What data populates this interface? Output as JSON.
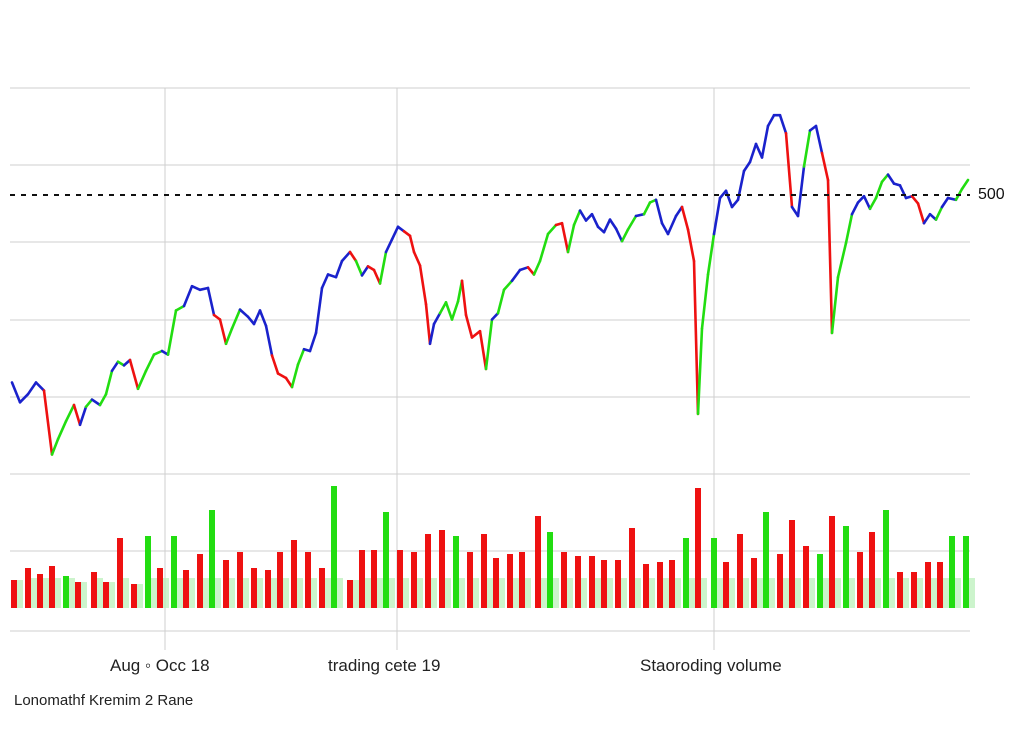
{
  "chart_data": {
    "type": "line",
    "reference_line": {
      "value": 500,
      "label": "500",
      "style": "dashed"
    },
    "x_labels": [
      "Aug ◦ Occ 18",
      "trading cete 19",
      "Staoroding volume"
    ],
    "footer": "Lonomathf Kremim 2 Rane",
    "grid": true,
    "ylim": [
      0,
      600
    ],
    "colors": {
      "up": "#22dd11",
      "down": "#ee1111",
      "flat": "#1a22cc",
      "volume_shadow": "#b6f0b6",
      "grid": "#cfcfcf"
    },
    "price": [
      {
        "x": 12,
        "y": 275,
        "c": "blue"
      },
      {
        "x": 20,
        "y": 253,
        "c": "blue"
      },
      {
        "x": 28,
        "y": 262,
        "c": "blue"
      },
      {
        "x": 36,
        "y": 275,
        "c": "blue"
      },
      {
        "x": 44,
        "y": 266,
        "c": "blue"
      },
      {
        "x": 52,
        "y": 195,
        "c": "red"
      },
      {
        "x": 58,
        "y": 212,
        "c": "green"
      },
      {
        "x": 66,
        "y": 232,
        "c": "green"
      },
      {
        "x": 74,
        "y": 250,
        "c": "green"
      },
      {
        "x": 80,
        "y": 228,
        "c": "red"
      },
      {
        "x": 86,
        "y": 248,
        "c": "blue"
      },
      {
        "x": 92,
        "y": 256,
        "c": "green"
      },
      {
        "x": 100,
        "y": 250,
        "c": "blue"
      },
      {
        "x": 106,
        "y": 262,
        "c": "green"
      },
      {
        "x": 112,
        "y": 288,
        "c": "green"
      },
      {
        "x": 118,
        "y": 298,
        "c": "blue"
      },
      {
        "x": 124,
        "y": 294,
        "c": "green"
      },
      {
        "x": 130,
        "y": 300,
        "c": "blue"
      },
      {
        "x": 138,
        "y": 268,
        "c": "red"
      },
      {
        "x": 146,
        "y": 288,
        "c": "green"
      },
      {
        "x": 154,
        "y": 306,
        "c": "green"
      },
      {
        "x": 162,
        "y": 310,
        "c": "green"
      },
      {
        "x": 168,
        "y": 306,
        "c": "blue"
      },
      {
        "x": 176,
        "y": 355,
        "c": "green"
      },
      {
        "x": 184,
        "y": 360,
        "c": "green"
      },
      {
        "x": 192,
        "y": 382,
        "c": "blue"
      },
      {
        "x": 200,
        "y": 378,
        "c": "blue"
      },
      {
        "x": 208,
        "y": 380,
        "c": "blue"
      },
      {
        "x": 214,
        "y": 350,
        "c": "blue"
      },
      {
        "x": 220,
        "y": 345,
        "c": "red"
      },
      {
        "x": 226,
        "y": 318,
        "c": "red"
      },
      {
        "x": 232,
        "y": 335,
        "c": "green"
      },
      {
        "x": 240,
        "y": 356,
        "c": "green"
      },
      {
        "x": 248,
        "y": 348,
        "c": "blue"
      },
      {
        "x": 254,
        "y": 340,
        "c": "blue"
      },
      {
        "x": 260,
        "y": 355,
        "c": "blue"
      },
      {
        "x": 266,
        "y": 338,
        "c": "blue"
      },
      {
        "x": 272,
        "y": 305,
        "c": "blue"
      },
      {
        "x": 278,
        "y": 285,
        "c": "red"
      },
      {
        "x": 286,
        "y": 280,
        "c": "red"
      },
      {
        "x": 292,
        "y": 270,
        "c": "red"
      },
      {
        "x": 298,
        "y": 295,
        "c": "green"
      },
      {
        "x": 304,
        "y": 312,
        "c": "green"
      },
      {
        "x": 310,
        "y": 310,
        "c": "blue"
      },
      {
        "x": 316,
        "y": 330,
        "c": "blue"
      },
      {
        "x": 322,
        "y": 380,
        "c": "blue"
      },
      {
        "x": 328,
        "y": 395,
        "c": "blue"
      },
      {
        "x": 336,
        "y": 392,
        "c": "blue"
      },
      {
        "x": 342,
        "y": 410,
        "c": "blue"
      },
      {
        "x": 350,
        "y": 420,
        "c": "blue"
      },
      {
        "x": 356,
        "y": 410,
        "c": "red"
      },
      {
        "x": 362,
        "y": 394,
        "c": "green"
      },
      {
        "x": 368,
        "y": 404,
        "c": "blue"
      },
      {
        "x": 374,
        "y": 400,
        "c": "red"
      },
      {
        "x": 380,
        "y": 385,
        "c": "red"
      },
      {
        "x": 386,
        "y": 420,
        "c": "green"
      },
      {
        "x": 392,
        "y": 434,
        "c": "blue"
      },
      {
        "x": 398,
        "y": 448,
        "c": "blue"
      },
      {
        "x": 404,
        "y": 443,
        "c": "blue"
      },
      {
        "x": 410,
        "y": 438,
        "c": "red"
      },
      {
        "x": 414,
        "y": 420,
        "c": "red"
      },
      {
        "x": 420,
        "y": 405,
        "c": "red"
      },
      {
        "x": 426,
        "y": 362,
        "c": "red"
      },
      {
        "x": 430,
        "y": 318,
        "c": "red"
      },
      {
        "x": 434,
        "y": 340,
        "c": "blue"
      },
      {
        "x": 440,
        "y": 352,
        "c": "blue"
      },
      {
        "x": 446,
        "y": 364,
        "c": "green"
      },
      {
        "x": 452,
        "y": 345,
        "c": "green"
      },
      {
        "x": 458,
        "y": 365,
        "c": "green"
      },
      {
        "x": 462,
        "y": 388,
        "c": "green"
      },
      {
        "x": 466,
        "y": 350,
        "c": "red"
      },
      {
        "x": 472,
        "y": 325,
        "c": "red"
      },
      {
        "x": 480,
        "y": 332,
        "c": "red"
      },
      {
        "x": 486,
        "y": 290,
        "c": "red"
      },
      {
        "x": 492,
        "y": 345,
        "c": "green"
      },
      {
        "x": 498,
        "y": 352,
        "c": "blue"
      },
      {
        "x": 504,
        "y": 378,
        "c": "green"
      },
      {
        "x": 512,
        "y": 388,
        "c": "green"
      },
      {
        "x": 520,
        "y": 400,
        "c": "blue"
      },
      {
        "x": 528,
        "y": 403,
        "c": "blue"
      },
      {
        "x": 534,
        "y": 395,
        "c": "red"
      },
      {
        "x": 540,
        "y": 410,
        "c": "green"
      },
      {
        "x": 548,
        "y": 440,
        "c": "green"
      },
      {
        "x": 556,
        "y": 450,
        "c": "green"
      },
      {
        "x": 562,
        "y": 452,
        "c": "red"
      },
      {
        "x": 568,
        "y": 420,
        "c": "red"
      },
      {
        "x": 574,
        "y": 450,
        "c": "green"
      },
      {
        "x": 580,
        "y": 466,
        "c": "green"
      },
      {
        "x": 586,
        "y": 455,
        "c": "blue"
      },
      {
        "x": 592,
        "y": 462,
        "c": "blue"
      },
      {
        "x": 598,
        "y": 448,
        "c": "blue"
      },
      {
        "x": 604,
        "y": 442,
        "c": "blue"
      },
      {
        "x": 610,
        "y": 456,
        "c": "blue"
      },
      {
        "x": 616,
        "y": 446,
        "c": "blue"
      },
      {
        "x": 622,
        "y": 432,
        "c": "blue"
      },
      {
        "x": 628,
        "y": 445,
        "c": "green"
      },
      {
        "x": 636,
        "y": 460,
        "c": "green"
      },
      {
        "x": 644,
        "y": 462,
        "c": "blue"
      },
      {
        "x": 650,
        "y": 475,
        "c": "green"
      },
      {
        "x": 656,
        "y": 478,
        "c": "green"
      },
      {
        "x": 662,
        "y": 452,
        "c": "blue"
      },
      {
        "x": 668,
        "y": 440,
        "c": "blue"
      },
      {
        "x": 676,
        "y": 460,
        "c": "blue"
      },
      {
        "x": 682,
        "y": 470,
        "c": "blue"
      },
      {
        "x": 688,
        "y": 445,
        "c": "red"
      },
      {
        "x": 694,
        "y": 410,
        "c": "red"
      },
      {
        "x": 698,
        "y": 240,
        "c": "red"
      },
      {
        "x": 702,
        "y": 335,
        "c": "green"
      },
      {
        "x": 708,
        "y": 395,
        "c": "green"
      },
      {
        "x": 714,
        "y": 440,
        "c": "green"
      },
      {
        "x": 720,
        "y": 480,
        "c": "blue"
      },
      {
        "x": 726,
        "y": 488,
        "c": "blue"
      },
      {
        "x": 732,
        "y": 470,
        "c": "blue"
      },
      {
        "x": 738,
        "y": 478,
        "c": "blue"
      },
      {
        "x": 744,
        "y": 510,
        "c": "blue"
      },
      {
        "x": 750,
        "y": 520,
        "c": "blue"
      },
      {
        "x": 756,
        "y": 540,
        "c": "blue"
      },
      {
        "x": 762,
        "y": 525,
        "c": "blue"
      },
      {
        "x": 768,
        "y": 560,
        "c": "blue"
      },
      {
        "x": 774,
        "y": 572,
        "c": "blue"
      },
      {
        "x": 780,
        "y": 572,
        "c": "blue"
      },
      {
        "x": 786,
        "y": 552,
        "c": "blue"
      },
      {
        "x": 792,
        "y": 470,
        "c": "red"
      },
      {
        "x": 798,
        "y": 460,
        "c": "blue"
      },
      {
        "x": 804,
        "y": 515,
        "c": "blue"
      },
      {
        "x": 810,
        "y": 555,
        "c": "green"
      },
      {
        "x": 816,
        "y": 560,
        "c": "blue"
      },
      {
        "x": 822,
        "y": 530,
        "c": "blue"
      },
      {
        "x": 828,
        "y": 500,
        "c": "red"
      },
      {
        "x": 832,
        "y": 330,
        "c": "red"
      },
      {
        "x": 838,
        "y": 392,
        "c": "green"
      },
      {
        "x": 846,
        "y": 430,
        "c": "green"
      },
      {
        "x": 852,
        "y": 462,
        "c": "green"
      },
      {
        "x": 858,
        "y": 475,
        "c": "blue"
      },
      {
        "x": 864,
        "y": 482,
        "c": "blue"
      },
      {
        "x": 870,
        "y": 468,
        "c": "blue"
      },
      {
        "x": 876,
        "y": 480,
        "c": "green"
      },
      {
        "x": 882,
        "y": 498,
        "c": "green"
      },
      {
        "x": 888,
        "y": 506,
        "c": "green"
      },
      {
        "x": 894,
        "y": 496,
        "c": "blue"
      },
      {
        "x": 900,
        "y": 494,
        "c": "blue"
      },
      {
        "x": 906,
        "y": 480,
        "c": "blue"
      },
      {
        "x": 912,
        "y": 482,
        "c": "blue"
      },
      {
        "x": 918,
        "y": 474,
        "c": "red"
      },
      {
        "x": 924,
        "y": 452,
        "c": "red"
      },
      {
        "x": 930,
        "y": 462,
        "c": "blue"
      },
      {
        "x": 936,
        "y": 456,
        "c": "blue"
      },
      {
        "x": 942,
        "y": 470,
        "c": "green"
      },
      {
        "x": 948,
        "y": 480,
        "c": "blue"
      },
      {
        "x": 956,
        "y": 478,
        "c": "blue"
      },
      {
        "x": 962,
        "y": 490,
        "c": "green"
      },
      {
        "x": 968,
        "y": 500,
        "c": "green"
      }
    ],
    "volume": [
      {
        "x": 14,
        "v": 28,
        "c": "red"
      },
      {
        "x": 28,
        "v": 40,
        "c": "red"
      },
      {
        "x": 40,
        "v": 34,
        "c": "red"
      },
      {
        "x": 52,
        "v": 42,
        "c": "red"
      },
      {
        "x": 66,
        "v": 32,
        "c": "green"
      },
      {
        "x": 78,
        "v": 26,
        "c": "red"
      },
      {
        "x": 94,
        "v": 36,
        "c": "red"
      },
      {
        "x": 106,
        "v": 26,
        "c": "red"
      },
      {
        "x": 120,
        "v": 70,
        "c": "red"
      },
      {
        "x": 134,
        "v": 24,
        "c": "red"
      },
      {
        "x": 148,
        "v": 72,
        "c": "green"
      },
      {
        "x": 160,
        "v": 40,
        "c": "red"
      },
      {
        "x": 174,
        "v": 72,
        "c": "green"
      },
      {
        "x": 186,
        "v": 38,
        "c": "red"
      },
      {
        "x": 200,
        "v": 54,
        "c": "red"
      },
      {
        "x": 212,
        "v": 98,
        "c": "green"
      },
      {
        "x": 226,
        "v": 48,
        "c": "red"
      },
      {
        "x": 240,
        "v": 56,
        "c": "red"
      },
      {
        "x": 254,
        "v": 40,
        "c": "red"
      },
      {
        "x": 268,
        "v": 38,
        "c": "red"
      },
      {
        "x": 280,
        "v": 56,
        "c": "red"
      },
      {
        "x": 294,
        "v": 68,
        "c": "red"
      },
      {
        "x": 308,
        "v": 56,
        "c": "red"
      },
      {
        "x": 322,
        "v": 40,
        "c": "red"
      },
      {
        "x": 334,
        "v": 122,
        "c": "green"
      },
      {
        "x": 350,
        "v": 28,
        "c": "red"
      },
      {
        "x": 362,
        "v": 58,
        "c": "red"
      },
      {
        "x": 374,
        "v": 58,
        "c": "red"
      },
      {
        "x": 386,
        "v": 96,
        "c": "green"
      },
      {
        "x": 400,
        "v": 58,
        "c": "red"
      },
      {
        "x": 414,
        "v": 56,
        "c": "red"
      },
      {
        "x": 428,
        "v": 74,
        "c": "red"
      },
      {
        "x": 442,
        "v": 78,
        "c": "red"
      },
      {
        "x": 456,
        "v": 72,
        "c": "green"
      },
      {
        "x": 470,
        "v": 56,
        "c": "red"
      },
      {
        "x": 484,
        "v": 74,
        "c": "red"
      },
      {
        "x": 496,
        "v": 50,
        "c": "red"
      },
      {
        "x": 510,
        "v": 54,
        "c": "red"
      },
      {
        "x": 522,
        "v": 56,
        "c": "red"
      },
      {
        "x": 538,
        "v": 92,
        "c": "red"
      },
      {
        "x": 550,
        "v": 76,
        "c": "green"
      },
      {
        "x": 564,
        "v": 56,
        "c": "red"
      },
      {
        "x": 578,
        "v": 52,
        "c": "red"
      },
      {
        "x": 592,
        "v": 52,
        "c": "red"
      },
      {
        "x": 604,
        "v": 48,
        "c": "red"
      },
      {
        "x": 618,
        "v": 48,
        "c": "red"
      },
      {
        "x": 632,
        "v": 80,
        "c": "red"
      },
      {
        "x": 646,
        "v": 44,
        "c": "red"
      },
      {
        "x": 660,
        "v": 46,
        "c": "red"
      },
      {
        "x": 672,
        "v": 48,
        "c": "red"
      },
      {
        "x": 686,
        "v": 70,
        "c": "green"
      },
      {
        "x": 698,
        "v": 120,
        "c": "red"
      },
      {
        "x": 714,
        "v": 70,
        "c": "green"
      },
      {
        "x": 726,
        "v": 46,
        "c": "red"
      },
      {
        "x": 740,
        "v": 74,
        "c": "red"
      },
      {
        "x": 754,
        "v": 50,
        "c": "red"
      },
      {
        "x": 766,
        "v": 96,
        "c": "green"
      },
      {
        "x": 780,
        "v": 54,
        "c": "red"
      },
      {
        "x": 792,
        "v": 88,
        "c": "red"
      },
      {
        "x": 806,
        "v": 62,
        "c": "red"
      },
      {
        "x": 820,
        "v": 54,
        "c": "green"
      },
      {
        "x": 832,
        "v": 92,
        "c": "red"
      },
      {
        "x": 846,
        "v": 82,
        "c": "green"
      },
      {
        "x": 860,
        "v": 56,
        "c": "red"
      },
      {
        "x": 872,
        "v": 76,
        "c": "red"
      },
      {
        "x": 886,
        "v": 98,
        "c": "green"
      },
      {
        "x": 900,
        "v": 36,
        "c": "red"
      },
      {
        "x": 914,
        "v": 36,
        "c": "red"
      },
      {
        "x": 928,
        "v": 46,
        "c": "red"
      },
      {
        "x": 940,
        "v": 46,
        "c": "red"
      },
      {
        "x": 952,
        "v": 72,
        "c": "green"
      },
      {
        "x": 966,
        "v": 72,
        "c": "green"
      }
    ]
  }
}
